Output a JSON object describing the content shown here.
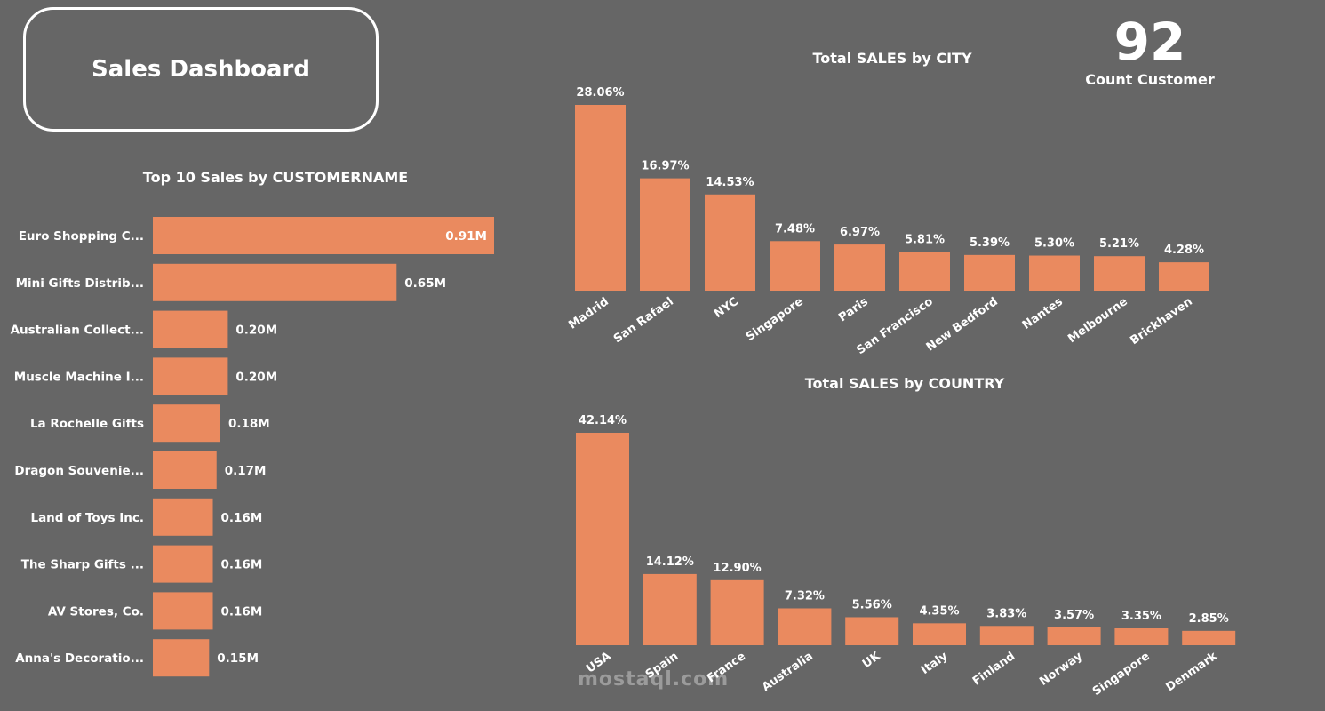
{
  "header": {
    "title": "Sales Dashboard"
  },
  "kpi": {
    "value": "92",
    "label": "Count Customer"
  },
  "watermark": "mostaql.com",
  "colors": {
    "background": "#666666",
    "bar": "#EA8A5F",
    "text": "#ffffff"
  },
  "chart_data": [
    {
      "id": "customers",
      "type": "bar",
      "orientation": "horizontal",
      "title": "Top 10 Sales by CUSTOMERNAME",
      "categories": [
        "Euro Shopping C...",
        "Mini Gifts Distrib...",
        "Australian Collect...",
        "Muscle Machine I...",
        "La Rochelle Gifts",
        "Dragon Souvenie...",
        "Land of Toys Inc.",
        "The Sharp Gifts ...",
        "AV Stores, Co.",
        "Anna's Decoratio..."
      ],
      "values": [
        0.91,
        0.65,
        0.2,
        0.2,
        0.18,
        0.17,
        0.16,
        0.16,
        0.16,
        0.15
      ],
      "labels": [
        "0.91M",
        "0.65M",
        "0.20M",
        "0.20M",
        "0.18M",
        "0.17M",
        "0.16M",
        "0.16M",
        "0.16M",
        "0.15M"
      ]
    },
    {
      "id": "city",
      "type": "bar",
      "title": "Total SALES by CITY",
      "categories": [
        "Madrid",
        "San Rafael",
        "NYC",
        "Singapore",
        "Paris",
        "San Francisco",
        "New Bedford",
        "Nantes",
        "Melbourne",
        "Brickhaven"
      ],
      "values": [
        28.06,
        16.97,
        14.53,
        7.48,
        6.97,
        5.81,
        5.39,
        5.3,
        5.21,
        4.28
      ],
      "labels": [
        "28.06%",
        "16.97%",
        "14.53%",
        "7.48%",
        "6.97%",
        "5.81%",
        "5.39%",
        "5.30%",
        "5.21%",
        "4.28%"
      ]
    },
    {
      "id": "country",
      "type": "bar",
      "title": "Total SALES by COUNTRY",
      "categories": [
        "USA",
        "Spain",
        "France",
        "Australia",
        "UK",
        "Italy",
        "Finland",
        "Norway",
        "Singapore",
        "Denmark"
      ],
      "values": [
        42.14,
        14.12,
        12.9,
        7.32,
        5.56,
        4.35,
        3.83,
        3.57,
        3.35,
        2.85
      ],
      "labels": [
        "42.14%",
        "14.12%",
        "12.90%",
        "7.32%",
        "5.56%",
        "4.35%",
        "3.83%",
        "3.57%",
        "3.35%",
        "2.85%"
      ]
    }
  ]
}
